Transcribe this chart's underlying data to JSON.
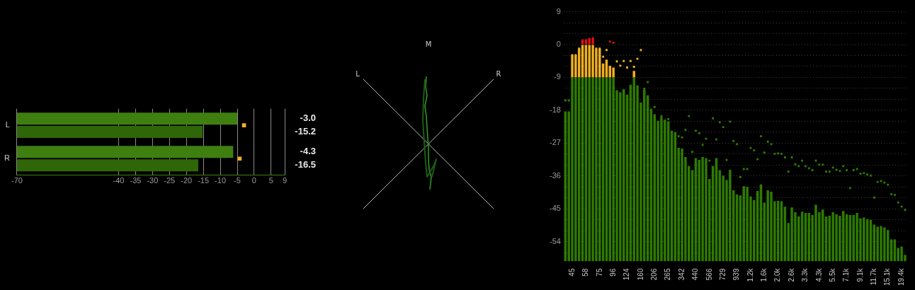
{
  "chart_data": [
    {
      "type": "bar",
      "orientation": "horizontal",
      "categories": [
        "L",
        "R"
      ],
      "xlim": [
        -70,
        9
      ],
      "xticks": [
        -70,
        -40,
        -35,
        -30,
        -25,
        -20,
        -15,
        -10,
        -5,
        0,
        5,
        9
      ],
      "grid": "x",
      "annotations": [
        "-15.2",
        "-16.5"
      ],
      "series": [
        {
          "color": "#3f7f10",
          "base": [
            -70,
            -70
          ],
          "values": [
            65,
            63.8
          ]
        },
        {
          "color": "#2e6608",
          "base": [
            -70,
            -70
          ],
          "values": [
            54.8,
            53.5
          ]
        },
        {
          "type": "scatter",
          "marker": "square",
          "color": "#f0b020",
          "values": [
            -3.0,
            -4.3
          ],
          "value_labels": [
            "-3.0",
            "-4.3"
          ]
        }
      ]
    },
    {
      "type": "other",
      "annotations": [
        "M",
        "L",
        "R"
      ]
    },
    {
      "type": "bar",
      "grid": "y",
      "ylim": [
        -59.4,
        9.5
      ],
      "yticks": [
        9,
        {
          "value": 6,
          "label": null
        },
        {
          "value": 3,
          "label": null
        },
        0,
        {
          "value": -3,
          "label": null
        },
        {
          "value": -6,
          "label": null
        },
        -9,
        {
          "value": -12,
          "label": null
        },
        {
          "value": -15,
          "label": null
        },
        -18,
        {
          "value": -21,
          "label": null
        },
        {
          "value": -24,
          "label": null
        },
        -27,
        {
          "value": -30,
          "label": null
        },
        {
          "value": -33,
          "label": null
        },
        -36,
        {
          "value": -39,
          "label": null
        },
        {
          "value": -42,
          "label": null
        },
        -45,
        {
          "value": -48,
          "label": null
        },
        {
          "value": -51,
          "label": null
        },
        -54,
        {
          "value": -57,
          "label": null
        }
      ],
      "categories": [
        null,
        null,
        "45",
        null,
        null,
        null,
        "58",
        null,
        null,
        null,
        "75",
        null,
        null,
        null,
        "96",
        null,
        null,
        null,
        "124",
        null,
        null,
        null,
        "160",
        null,
        null,
        null,
        "206",
        null,
        null,
        null,
        "265",
        null,
        null,
        null,
        "342",
        null,
        null,
        null,
        "440",
        null,
        null,
        null,
        "566",
        null,
        null,
        null,
        "729",
        null,
        null,
        null,
        "939",
        null,
        null,
        null,
        "1.2k",
        null,
        null,
        null,
        "1.6k",
        null,
        null,
        null,
        "2.0k",
        null,
        null,
        null,
        "2.6k",
        null,
        null,
        null,
        "3.3k",
        null,
        null,
        null,
        "4.3k",
        null,
        null,
        null,
        "5.5k",
        null,
        null,
        null,
        "7.1k",
        null,
        null,
        null,
        "9.1k",
        null,
        null,
        null,
        "11.7k",
        null,
        null,
        null,
        "15.1k",
        null,
        null,
        null,
        "19.4k",
        null
      ],
      "series": [
        {
          "color": "#2f7a00",
          "base": [
            -59.4,
            -59.4,
            -59.4,
            -59.4,
            -59.4,
            -59.4,
            -59.4,
            -59.4,
            -59.4,
            -59.4,
            -59.4,
            -59.4,
            -59.4,
            -59.4,
            -59.4,
            -59.4,
            -59.4,
            -59.4,
            -59.4,
            -59.4,
            -59.4,
            -59.4,
            -59.4,
            -59.4,
            -59.4,
            -59.4,
            -59.4,
            -59.4,
            -59.4,
            -59.4,
            -59.4,
            -59.4,
            -59.4,
            -59.4,
            -59.4,
            -59.4,
            -59.4,
            -59.4,
            -59.4,
            -59.4,
            -59.4,
            -59.4,
            -59.4,
            -59.4,
            -59.4,
            -59.4,
            -59.4,
            -59.4,
            -59.4,
            -59.4,
            -59.4,
            -59.4,
            -59.4,
            -59.4,
            -59.4,
            -59.4,
            -59.4,
            -59.4,
            -59.4,
            -59.4,
            -59.4,
            -59.4,
            -59.4,
            -59.4,
            -59.4,
            -59.4,
            -59.4,
            -59.4,
            -59.4,
            -59.4,
            -59.4,
            -59.4,
            -59.4,
            -59.4,
            -59.4,
            -59.4,
            -59.4,
            -59.4,
            -59.4,
            -59.4,
            -59.4,
            -59.4,
            -59.4,
            -59.4,
            -59.4,
            -59.4,
            -59.4,
            -59.4,
            -59.4,
            -59.4,
            -59.4,
            -59.4,
            -59.4,
            -59.4,
            -59.4,
            -59.4,
            -59.4,
            -59.4,
            -59.4,
            -59.4
          ],
          "values": [
            41.1,
            41.1,
            50.4,
            50.4,
            50.4,
            50.4,
            50.4,
            50.4,
            50.4,
            50.4,
            50.4,
            50.4,
            50.4,
            50.4,
            50.4,
            46.9,
            46.3,
            47.2,
            45.7,
            48.4,
            50.4,
            48.2,
            43.5,
            47.1,
            45.5,
            41.6,
            40.3,
            38.5,
            39.6,
            38.5,
            38.4,
            35.8,
            35.4,
            31.1,
            30.9,
            28.6,
            26.1,
            25,
            28.3,
            27.8,
            28.6,
            28.3,
            22.6,
            26.1,
            28.3,
            25,
            23.5,
            22.3,
            25.1,
            19.5,
            18.3,
            18.1,
            20.6,
            20.4,
            17.8,
            16.8,
            19.3,
            21.1,
            16.1,
            19.5,
            19.1,
            16.5,
            16.6,
            16.5,
            15,
            10.5,
            14.8,
            13.5,
            12.3,
            13.6,
            13.3,
            13.3,
            12.7,
            15.5,
            13.5,
            14.2,
            12.3,
            12.5,
            13.5,
            12.9,
            12.5,
            13.8,
            12.9,
            12.7,
            12.7,
            13.3,
            11.8,
            12,
            11.6,
            11.4,
            10.1,
            9.5,
            9.7,
            9.3,
            8.6,
            6,
            6,
            3.7,
            4.1,
            1.8
          ]
        },
        {
          "color": "#f0b020",
          "base": [
            null,
            null,
            -9,
            -9,
            -9,
            -9,
            -9,
            -9,
            -9,
            -9,
            -9,
            -9,
            -9,
            -9,
            -9,
            null,
            null,
            null,
            null,
            null,
            -9,
            null,
            null,
            null,
            null,
            null,
            null,
            null,
            null,
            null,
            null,
            null,
            null,
            null,
            null,
            null,
            null,
            null,
            null,
            null,
            null,
            null,
            null,
            null,
            null,
            null,
            null,
            null,
            null,
            null,
            null,
            null,
            null,
            null,
            null,
            null,
            null,
            null,
            null,
            null,
            null,
            null,
            null,
            null,
            null,
            null,
            null,
            null,
            null,
            null,
            null,
            null,
            null,
            null,
            null,
            null,
            null,
            null,
            null,
            null,
            null,
            null,
            null,
            null,
            null,
            null,
            null,
            null,
            null,
            null,
            null,
            null,
            null,
            null,
            null,
            null,
            null,
            null,
            null,
            null
          ],
          "values": [
            null,
            null,
            6.1,
            6.1,
            7.9,
            9,
            9,
            9,
            9,
            7.9,
            7.9,
            3.8,
            4.9,
            3.2,
            2.7,
            null,
            null,
            null,
            null,
            null,
            1.8,
            null,
            null,
            null,
            null,
            null,
            null,
            null,
            null,
            null,
            null,
            null,
            null,
            null,
            null,
            null,
            null,
            null,
            null,
            null,
            null,
            null,
            null,
            null,
            null,
            null,
            null,
            null,
            null,
            null,
            null,
            null,
            null,
            null,
            null,
            null,
            null,
            null,
            null,
            null,
            null,
            null,
            null,
            null,
            null,
            null,
            null,
            null,
            null,
            null,
            null,
            null,
            null,
            null,
            null,
            null,
            null,
            null,
            null,
            null,
            null,
            null,
            null,
            null,
            null,
            null,
            null,
            null,
            null,
            null,
            null,
            null,
            null,
            null,
            null,
            null,
            null,
            null,
            null,
            null
          ]
        },
        {
          "color": "#e01010",
          "base": [
            null,
            null,
            null,
            null,
            null,
            0,
            0,
            0,
            0,
            null,
            null,
            null,
            null,
            null,
            null,
            null,
            null,
            null,
            null,
            null,
            null,
            null,
            null,
            null,
            null,
            null,
            null,
            null,
            null,
            null,
            null,
            null,
            null,
            null,
            null,
            null,
            null,
            null,
            null,
            null,
            null,
            null,
            null,
            null,
            null,
            null,
            null,
            null,
            null,
            null,
            null,
            null,
            null,
            null,
            null,
            null,
            null,
            null,
            null,
            null,
            null,
            null,
            null,
            null,
            null,
            null,
            null,
            null,
            null,
            null,
            null,
            null,
            null,
            null,
            null,
            null,
            null,
            null,
            null,
            null,
            null,
            null,
            null,
            null,
            null,
            null,
            null,
            null,
            null,
            null,
            null,
            null,
            null,
            null,
            null,
            null,
            null,
            null,
            null,
            null
          ],
          "values": [
            null,
            null,
            null,
            null,
            null,
            1.2,
            1.2,
            1.5,
            1.7,
            null,
            null,
            null,
            null,
            null,
            null,
            null,
            null,
            null,
            null,
            null,
            null,
            null,
            null,
            null,
            null,
            null,
            null,
            null,
            null,
            null,
            null,
            null,
            null,
            null,
            null,
            null,
            null,
            null,
            null,
            null,
            null,
            null,
            null,
            null,
            null,
            null,
            null,
            null,
            null,
            null,
            null,
            null,
            null,
            null,
            null,
            null,
            null,
            null,
            null,
            null,
            null,
            null,
            null,
            null,
            null,
            null,
            null,
            null,
            null,
            null,
            null,
            null,
            null,
            null,
            null,
            null,
            null,
            null,
            null,
            null,
            null,
            null,
            null,
            null,
            null,
            null,
            null,
            null,
            null,
            null,
            null,
            null,
            null,
            null,
            null,
            null,
            null,
            null,
            null,
            null
          ]
        },
        {
          "type": "scatter",
          "marker": "square",
          "colors": [
            "#2f7a00",
            "#2f7a00",
            "#f0b020",
            "#f0b020",
            "#f0b020",
            "#e01010",
            "#e01010",
            "#e01010",
            "#e01010",
            "#f0b020",
            "#f0b020",
            "#f0b020",
            "#f0b020",
            "#e01010",
            "#e01010",
            "#f0b020",
            "#f0b020",
            "#f0b020",
            "#f0b020",
            "#f0b020",
            "#f0b020",
            "#f0b020",
            "#f0b020",
            "#2f7a00",
            "#2f7a00",
            "#2f7a00",
            "#2f7a00",
            "#2f7a00",
            "#2f7a00",
            "#2f7a00",
            "#2f7a00",
            "#2f7a00",
            "#2f7a00",
            "#2f7a00",
            "#2f7a00",
            "#2f7a00",
            "#2f7a00",
            "#2f7a00",
            "#2f7a00",
            "#2f7a00",
            "#2f7a00",
            "#2f7a00",
            "#2f7a00",
            "#2f7a00",
            "#2f7a00",
            "#2f7a00",
            "#2f7a00",
            "#2f7a00",
            "#2f7a00",
            "#2f7a00",
            "#2f7a00",
            "#2f7a00",
            "#2f7a00",
            "#2f7a00",
            "#2f7a00",
            "#2f7a00",
            "#2f7a00",
            "#2f7a00",
            "#2f7a00",
            "#2f7a00",
            "#2f7a00",
            "#2f7a00",
            "#2f7a00",
            "#2f7a00",
            "#2f7a00",
            "#2f7a00",
            "#2f7a00",
            "#2f7a00",
            "#2f7a00",
            "#2f7a00",
            "#2f7a00",
            "#2f7a00",
            "#2f7a00",
            "#2f7a00",
            "#2f7a00",
            "#2f7a00",
            "#2f7a00",
            "#2f7a00",
            "#2f7a00",
            "#2f7a00",
            "#2f7a00",
            "#2f7a00",
            "#2f7a00",
            "#2f7a00",
            "#2f7a00",
            "#2f7a00",
            "#2f7a00",
            "#2f7a00",
            "#2f7a00",
            "#2f7a00",
            "#2f7a00",
            "#2f7a00",
            "#2f7a00",
            "#2f7a00",
            "#2f7a00",
            "#2f7a00",
            "#2f7a00",
            "#2f7a00",
            "#2f7a00",
            "#2f7a00"
          ],
          "values": [
            -15.3,
            -15.3,
            -2.9,
            -2.9,
            -1.1,
            1.2,
            1.2,
            1.5,
            1.7,
            -1.1,
            -1.1,
            -3.3,
            -1.5,
            0.8,
            0.5,
            -4.6,
            -5.8,
            -4.5,
            -6.3,
            -4.5,
            -6.1,
            -3.9,
            -1.5,
            -12.1,
            -10.3,
            -17.8,
            -17.1,
            null,
            -19.6,
            -20.8,
            -20.4,
            null,
            null,
            -25.1,
            -25.4,
            -23.4,
            -19.6,
            -29.4,
            -23.6,
            -24.3,
            -27.5,
            -25.8,
            -31.8,
            -20.2,
            -26,
            -21.3,
            -22.6,
            -31.6,
            -21.1,
            -26.4,
            -27.3,
            -36.3,
            -34.1,
            -34.1,
            -28.3,
            -29,
            -31.4,
            -25.1,
            -29.6,
            -26.6,
            -27.3,
            -29.9,
            -29.8,
            -29.9,
            -30.9,
            -34.8,
            -30.9,
            -32.8,
            -33.3,
            -31.8,
            -33.3,
            -33.9,
            -34.4,
            -31.8,
            -32.9,
            -32.9,
            -34.8,
            -34.8,
            -33.7,
            -34.3,
            -34.6,
            -33.3,
            -34.4,
            -39.3,
            -34.4,
            -34.1,
            -35.4,
            -35.2,
            -35.6,
            -35.9,
            -41.9,
            -37.6,
            -37.4,
            -37.8,
            -38.4,
            -41,
            -41.2,
            -43.3,
            -44.4,
            -45.3
          ]
        }
      ]
    }
  ]
}
